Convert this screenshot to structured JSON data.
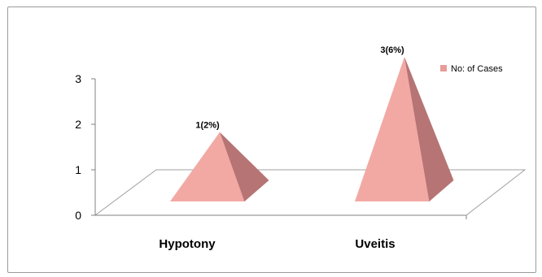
{
  "chart_data": {
    "type": "bar",
    "subtype": "3d-pyramid",
    "categories": [
      "Hypotony",
      "Uveitis"
    ],
    "series": [
      {
        "name": "No: of Cases",
        "values": [
          1,
          3
        ],
        "labels": [
          "1(2%)",
          "3(6%)"
        ]
      }
    ],
    "ylim": [
      0,
      3
    ],
    "yticks": [
      "0",
      "1",
      "2",
      "3"
    ],
    "grid": false,
    "legend_position": "right",
    "colors": {
      "front": "#F2A9A4",
      "side": "#B67474",
      "accent": "#E89C99",
      "axis": "#808080"
    }
  }
}
